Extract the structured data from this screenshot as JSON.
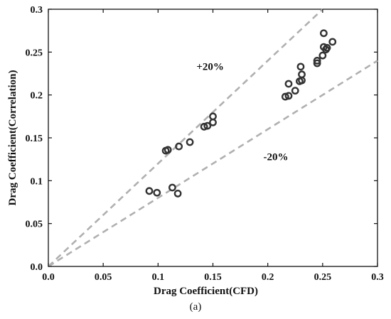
{
  "caption": "(a)",
  "chart_data": {
    "type": "scatter",
    "xlabel": "Drag Coefficient(CFD)",
    "ylabel": "Drag Coefficient(Correlation)",
    "xlim": [
      0,
      0.3
    ],
    "ylim": [
      0,
      0.3
    ],
    "xticks": [
      "0.0",
      "0.05",
      "0.1",
      "0.15",
      "0.2",
      "0.25",
      "0.3"
    ],
    "yticks": [
      "0.0",
      "0.05",
      "0.1",
      "0.15",
      "0.2",
      "0.25",
      "0.3"
    ],
    "grid": false,
    "marker": "open-circle",
    "marker_color": "#333333",
    "reference_line_color": "#b0b0b0",
    "reference_lines": [
      {
        "label": "+20%",
        "slope": 1.2
      },
      {
        "label": "-20%",
        "slope": 0.8
      }
    ],
    "points": [
      {
        "x": 0.092,
        "y": 0.088
      },
      {
        "x": 0.099,
        "y": 0.086
      },
      {
        "x": 0.113,
        "y": 0.092
      },
      {
        "x": 0.118,
        "y": 0.085
      },
      {
        "x": 0.107,
        "y": 0.135
      },
      {
        "x": 0.109,
        "y": 0.136
      },
      {
        "x": 0.119,
        "y": 0.14
      },
      {
        "x": 0.129,
        "y": 0.145
      },
      {
        "x": 0.142,
        "y": 0.163
      },
      {
        "x": 0.145,
        "y": 0.164
      },
      {
        "x": 0.15,
        "y": 0.168
      },
      {
        "x": 0.15,
        "y": 0.175
      },
      {
        "x": 0.216,
        "y": 0.198
      },
      {
        "x": 0.219,
        "y": 0.213
      },
      {
        "x": 0.219,
        "y": 0.199
      },
      {
        "x": 0.225,
        "y": 0.205
      },
      {
        "x": 0.229,
        "y": 0.216
      },
      {
        "x": 0.23,
        "y": 0.233
      },
      {
        "x": 0.231,
        "y": 0.224
      },
      {
        "x": 0.231,
        "y": 0.217
      },
      {
        "x": 0.245,
        "y": 0.237
      },
      {
        "x": 0.245,
        "y": 0.24
      },
      {
        "x": 0.25,
        "y": 0.246
      },
      {
        "x": 0.251,
        "y": 0.256
      },
      {
        "x": 0.251,
        "y": 0.272
      },
      {
        "x": 0.253,
        "y": 0.253
      },
      {
        "x": 0.254,
        "y": 0.255
      },
      {
        "x": 0.259,
        "y": 0.262
      }
    ]
  }
}
